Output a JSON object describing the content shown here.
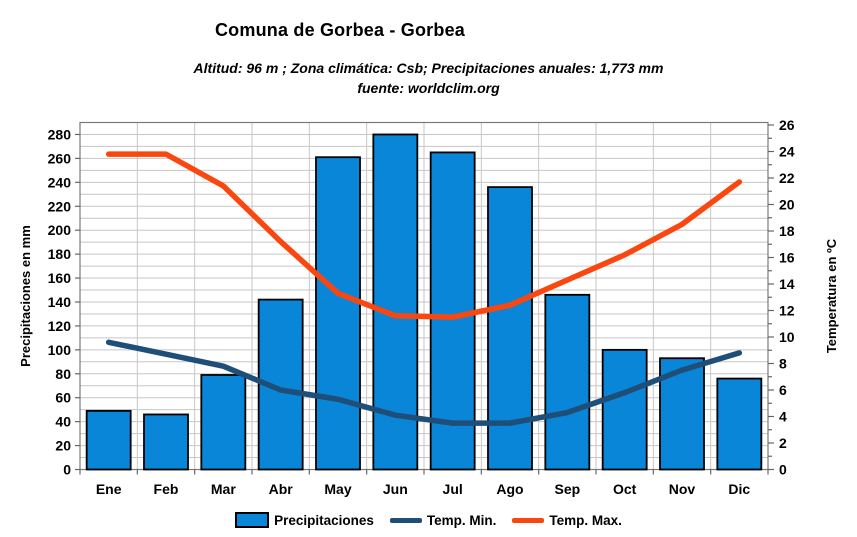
{
  "header": {
    "title": "Comuna de Gorbea - Gorbea",
    "subtitle_line1": "Altitud: 96 m ;  Zona climática: Csb;  Precipitaciones anuales: 1,773 mm",
    "subtitle_line2": "fuente: worldclim.org"
  },
  "chart_data": {
    "type": "bar",
    "subtype": "bar-and-line-combo",
    "categories": [
      "Ene",
      "Feb",
      "Mar",
      "Abr",
      "May",
      "Jun",
      "Jul",
      "Ago",
      "Sep",
      "Oct",
      "Nov",
      "Dic"
    ],
    "series": [
      {
        "name": "Precipitaciones",
        "kind": "bar",
        "axis": "left",
        "color": "#0a86d8",
        "unit": "mm",
        "values": [
          49,
          46,
          79,
          142,
          261,
          280,
          265,
          236,
          146,
          100,
          93,
          76
        ]
      },
      {
        "name": "Temp. Min.",
        "kind": "line",
        "axis": "right",
        "color": "#1f4e79",
        "unit": "°C",
        "values": [
          9.6,
          8.7,
          7.8,
          6.0,
          5.3,
          4.1,
          3.5,
          3.5,
          4.3,
          5.8,
          7.5,
          8.8
        ]
      },
      {
        "name": "Temp. Max.",
        "kind": "line",
        "axis": "right",
        "color": "#fa470f",
        "unit": "°C",
        "values": [
          23.8,
          23.8,
          21.4,
          17.2,
          13.3,
          11.6,
          11.5,
          12.4,
          14.3,
          16.2,
          18.5,
          21.7
        ]
      }
    ],
    "left_axis": {
      "label": "Precipitaciones en mm",
      "min": 0,
      "max": 280,
      "step": 20,
      "minor_step": 10
    },
    "right_axis": {
      "label": "Temperatura en ºC",
      "min": 0,
      "max": 26,
      "step": 2,
      "minor_step": 1
    },
    "grid": true,
    "gridline_color": "#c6c6c6",
    "legend_position": "bottom",
    "annual_precipitation_mm": 1773
  }
}
